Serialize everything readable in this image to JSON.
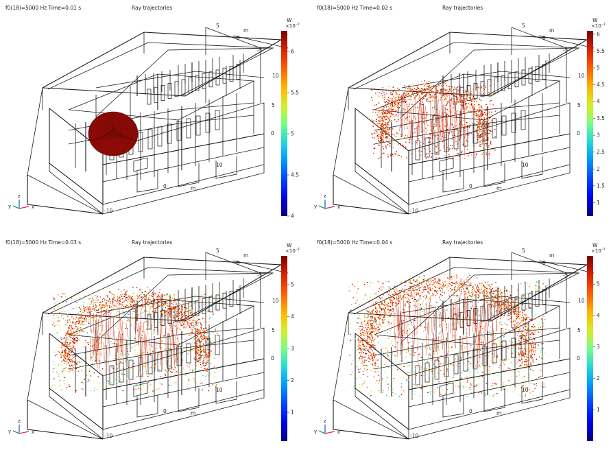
{
  "panels": [
    {
      "label": "f0(18)=5000 Hz Time=0.01 s",
      "title": "Ray trajectories",
      "colorbar": {
        "unit": "W",
        "exponent_base": "×10",
        "exponent": "-7",
        "ticks": [
          "6",
          "5.5",
          "5",
          "4.5",
          "4"
        ],
        "min": 4.0,
        "max": 6.25
      },
      "spread": 0.25,
      "axis_ticks": {
        "a5": "5",
        "a0": "0",
        "am5": "-5",
        "m": "m",
        "z10": "10",
        "z5": "5",
        "z0": "0",
        "x10": "10",
        "x0": "0",
        "xm": "m",
        "xm10": "-10"
      }
    },
    {
      "label": "f0(18)=5000 Hz Time=0.02 s",
      "title": "Ray trajectories",
      "colorbar": {
        "unit": "W",
        "exponent_base": "×10",
        "exponent": "-7",
        "ticks": [
          "6",
          "5.5",
          "5",
          "4.5",
          "4",
          "3.5",
          "3",
          "2.5",
          "2",
          "1.5",
          "1"
        ],
        "min": 0.6,
        "max": 6.1
      },
      "spread": 0.5,
      "axis_ticks": {
        "a5": "5",
        "a0": "0",
        "am5": "-5",
        "m": "m",
        "z10": "10",
        "z5": "5",
        "z0": "0",
        "x10": "10",
        "x0": "0",
        "xm": "m",
        "xm10": "-10"
      }
    },
    {
      "label": "f0(18)=5000 Hz Time=0.03 s",
      "title": "Ray trajectories",
      "colorbar": {
        "unit": "W",
        "exponent_base": "×10",
        "exponent": "-7",
        "ticks": [
          "5",
          "4",
          "3",
          "2",
          "1"
        ],
        "min": 0.1,
        "max": 5.9
      },
      "spread": 0.78,
      "axis_ticks": {
        "a5": "5",
        "a0": "0",
        "am5": "-5",
        "m": "m",
        "z10": "10",
        "z5": "5",
        "z0": "0",
        "x10": "10",
        "x0": "0",
        "xm": "m",
        "xm10": "-10"
      }
    },
    {
      "label": "f0(18)=5000 Hz Time=0.04 s",
      "title": "Ray trajectories",
      "colorbar": {
        "unit": "W",
        "exponent_base": "×10",
        "exponent": "-7",
        "ticks": [
          "5",
          "4",
          "3",
          "2",
          "1"
        ],
        "min": 0.0,
        "max": 5.9
      },
      "spread": 1.0,
      "axis_ticks": {
        "a5": "5",
        "a0": "0",
        "am5": "-5",
        "m": "m",
        "z10": "10",
        "z5": "5",
        "z0": "0",
        "x10": "10",
        "x0": "0",
        "xm": "m",
        "xm10": "-10"
      }
    }
  ],
  "triad": {
    "x": "x",
    "y": "y",
    "z": "z"
  },
  "colors": {
    "structure": "#1a1a1a",
    "ray_dark": "#8b0000",
    "ray_red": "#c41a10"
  }
}
